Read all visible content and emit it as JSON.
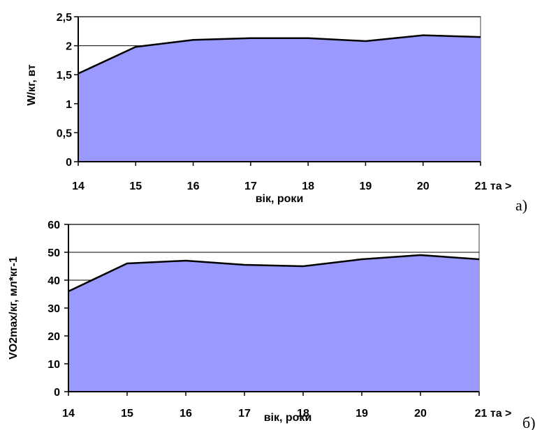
{
  "chart_data": [
    {
      "type": "area",
      "panel_label": "а)",
      "xlabel": "вік, роки",
      "ylabel": "W/кг, вт",
      "categories": [
        "14",
        "15",
        "16",
        "17",
        "18",
        "19",
        "20",
        "21 та >"
      ],
      "values": [
        1.52,
        1.98,
        2.1,
        2.13,
        2.13,
        2.08,
        2.18,
        2.15
      ],
      "ylim": [
        0,
        2.5
      ],
      "yticks": [
        "0",
        "0,5",
        "1",
        "1,5",
        "2",
        "2,5"
      ],
      "ytick_values": [
        0,
        0.5,
        1,
        1.5,
        2,
        2.5
      ],
      "grid": "horizontal",
      "fill_color": "#9999ff"
    },
    {
      "type": "area",
      "panel_label": "б)",
      "xlabel": "вік, роки",
      "ylabel": "VO2max/кг, мл*кг-1",
      "categories": [
        "14",
        "15",
        "16",
        "17",
        "18",
        "19",
        "20",
        "21 та >"
      ],
      "values": [
        36,
        46,
        47,
        45.5,
        45,
        47.5,
        49,
        47.5
      ],
      "ylim": [
        0,
        60
      ],
      "yticks": [
        "0",
        "10",
        "20",
        "30",
        "40",
        "50",
        "60"
      ],
      "ytick_values": [
        0,
        10,
        20,
        30,
        40,
        50,
        60
      ],
      "grid": "horizontal",
      "fill_color": "#9999ff"
    }
  ]
}
